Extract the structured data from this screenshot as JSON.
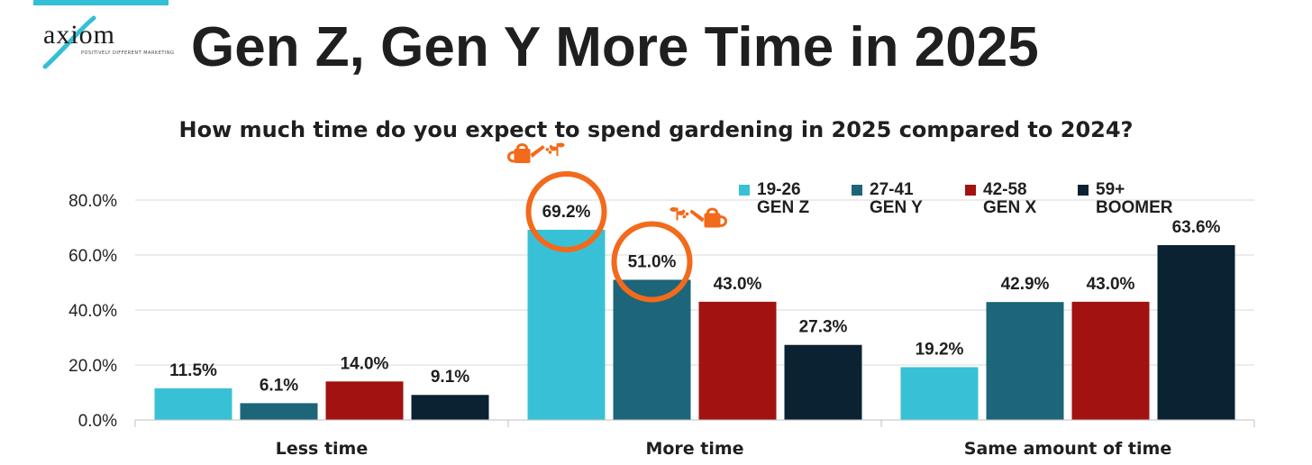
{
  "logo": {
    "text": "axiom",
    "tagline": "POSITIVELY DIFFERENT MARKETING"
  },
  "header": {
    "title": "Gen Z, Gen Y More Time in 2025"
  },
  "colors": {
    "accent_strip": "#33c0d6",
    "highlight_circle": "#f26a1b",
    "gen_z": "#38c1d6",
    "gen_y": "#1d6578",
    "gen_x": "#a11210",
    "boomer": "#0b2233",
    "grid": "#d9d9d9",
    "text": "#1f1f1f"
  },
  "legend": [
    {
      "range": "19-26",
      "gen": "GEN Z",
      "color": "#38c1d6"
    },
    {
      "range": "27-41",
      "gen": "GEN Y",
      "color": "#1d6578"
    },
    {
      "range": "42-58",
      "gen": "GEN X",
      "color": "#a11210"
    },
    {
      "range": "59+",
      "gen": "BOOMER",
      "color": "#0b2233"
    }
  ],
  "chart_data": {
    "type": "bar",
    "title": "How much time do you expect to spend gardening in 2025 compared to 2024?",
    "categories": [
      "Less time",
      "More time",
      "Same amount of time"
    ],
    "series": [
      {
        "name": "19-26 GEN Z",
        "values": [
          11.5,
          69.2,
          19.2
        ]
      },
      {
        "name": "27-41 GEN Y",
        "values": [
          6.1,
          51.0,
          42.9
        ]
      },
      {
        "name": "42-58 GEN X",
        "values": [
          14.0,
          43.0,
          43.0
        ]
      },
      {
        "name": "59+ BOOMER",
        "values": [
          9.1,
          27.3,
          63.6
        ]
      }
    ],
    "data_labels": [
      [
        "11.5%",
        "6.1%",
        "14.0%",
        "9.1%"
      ],
      [
        "69.2%",
        "51.0%",
        "43.0%",
        "27.3%"
      ],
      [
        "19.2%",
        "42.9%",
        "43.0%",
        "63.6%"
      ]
    ],
    "y_ticks": [
      "0.0%",
      "20.0%",
      "40.0%",
      "60.0%",
      "80.0%"
    ],
    "ylim": [
      0,
      80
    ],
    "grid": true,
    "legend_position": "top-right",
    "highlighted": [
      {
        "category": "More time",
        "series": "19-26 GEN Z"
      },
      {
        "category": "More time",
        "series": "27-41 GEN Y"
      }
    ]
  }
}
